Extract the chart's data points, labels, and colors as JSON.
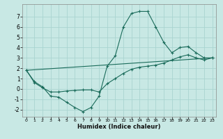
{
  "xlabel": "Humidex (Indice chaleur)",
  "ylabel": "",
  "background_color": "#c8e8e4",
  "grid_color": "#aad4d0",
  "line_color": "#1a6b5a",
  "xlim": [
    -0.5,
    23.5
  ],
  "ylim": [
    -2.7,
    8.2
  ],
  "xticks": [
    0,
    1,
    2,
    3,
    4,
    5,
    6,
    7,
    8,
    9,
    10,
    11,
    12,
    13,
    14,
    15,
    16,
    17,
    18,
    19,
    20,
    21,
    22,
    23
  ],
  "yticks": [
    -2,
    -1,
    0,
    1,
    2,
    3,
    4,
    5,
    6,
    7
  ],
  "series": {
    "line1_x": [
      0,
      1,
      2,
      3,
      4,
      5,
      6,
      7,
      8,
      9,
      10,
      11,
      12,
      13,
      14,
      15,
      16,
      17,
      18,
      19,
      20,
      21,
      22,
      23
    ],
    "line1_y": [
      1.8,
      0.7,
      0.2,
      -0.7,
      -0.8,
      -1.3,
      -1.8,
      -2.2,
      -1.8,
      -0.7,
      2.2,
      3.2,
      6.0,
      7.3,
      7.5,
      7.5,
      6.0,
      4.5,
      3.5,
      4.0,
      4.1,
      3.5,
      3.0,
      3.0
    ],
    "line2_x": [
      0,
      1,
      2,
      3,
      4,
      5,
      6,
      7,
      8,
      9,
      10,
      11,
      12,
      13,
      14,
      15,
      16,
      17,
      18,
      19,
      20,
      21,
      22,
      23
    ],
    "line2_y": [
      1.8,
      0.6,
      0.1,
      -0.3,
      -0.3,
      -0.2,
      -0.15,
      -0.1,
      -0.1,
      -0.3,
      0.5,
      1.0,
      1.5,
      1.9,
      2.1,
      2.2,
      2.3,
      2.5,
      2.8,
      3.1,
      3.3,
      3.0,
      2.8,
      3.0
    ],
    "line3_x": [
      0,
      23
    ],
    "line3_y": [
      1.8,
      3.0
    ]
  }
}
